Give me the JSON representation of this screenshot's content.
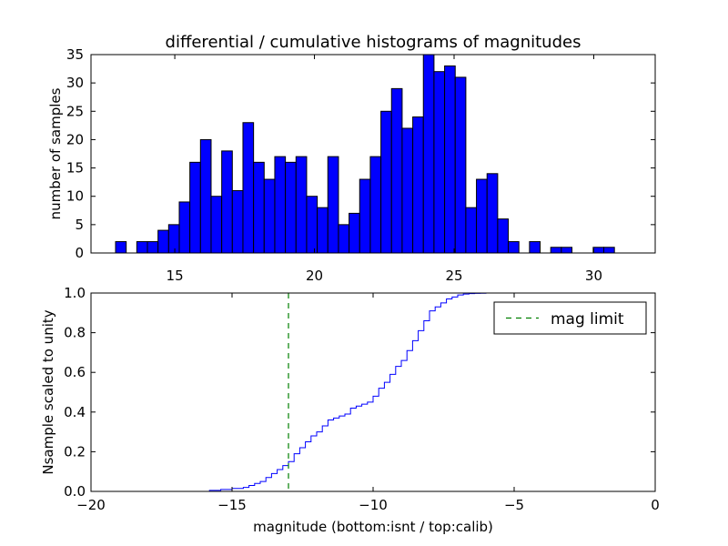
{
  "chart_data": [
    {
      "type": "bar",
      "title": "differential / cumulative histograms of magnitudes",
      "xlabel": "",
      "ylabel": "number of samples",
      "xlim": [
        12.0,
        32.2
      ],
      "ylim": [
        0,
        35
      ],
      "bin_width": 0.38,
      "xticks": [
        15,
        20,
        25,
        30
      ],
      "yticks": [
        0,
        5,
        10,
        15,
        20,
        25,
        30,
        35
      ],
      "bar_color": "#0000ff",
      "bins_start": [
        12.88,
        13.26,
        13.64,
        14.02,
        14.4,
        14.78,
        15.16,
        15.54,
        15.92,
        16.3,
        16.68,
        17.06,
        17.44,
        17.82,
        18.2,
        18.58,
        18.96,
        19.34,
        19.72,
        20.1,
        20.48,
        20.86,
        21.24,
        21.62,
        22.0,
        22.38,
        22.76,
        23.14,
        23.52,
        23.9,
        24.28,
        24.66,
        25.04,
        25.42,
        25.8,
        26.18,
        26.56,
        26.94,
        27.32,
        27.7,
        28.08,
        28.46,
        28.84,
        29.22,
        29.6,
        29.98,
        30.36,
        30.74,
        31.12,
        31.5,
        31.88
      ],
      "values": [
        2,
        0,
        2,
        2,
        4,
        5,
        9,
        16,
        20,
        10,
        18,
        11,
        23,
        16,
        13,
        17,
        16,
        17,
        10,
        8,
        17,
        5,
        7,
        13,
        17,
        25,
        29,
        22,
        24,
        35,
        32,
        33,
        31,
        8,
        13,
        14,
        6,
        2,
        0,
        2,
        0,
        1,
        1,
        0,
        0,
        1,
        1,
        0,
        0,
        0,
        0
      ]
    },
    {
      "type": "line",
      "xlabel": "magnitude (bottom:isnt / top:calib)",
      "ylabel": "Nsample scaled to unity",
      "xlim": [
        -20,
        0
      ],
      "ylim": [
        0.0,
        1.0
      ],
      "xticks": [
        -20,
        -15,
        -10,
        -5,
        0
      ],
      "yticks": [
        0.0,
        0.2,
        0.4,
        0.6,
        0.8,
        1.0
      ],
      "line_color": "#0000ff",
      "mag_limit": -13.0,
      "mag_limit_color": "#008000",
      "legend": {
        "label": "mag limit",
        "placement": "top-right"
      },
      "x": [
        -20.0,
        -15.8,
        -15.4,
        -15.0,
        -14.6,
        -14.4,
        -14.2,
        -14.0,
        -13.8,
        -13.6,
        -13.4,
        -13.2,
        -13.0,
        -12.8,
        -12.6,
        -12.4,
        -12.2,
        -12.0,
        -11.8,
        -11.6,
        -11.4,
        -11.2,
        -11.0,
        -10.8,
        -10.6,
        -10.4,
        -10.2,
        -10.0,
        -9.8,
        -9.6,
        -9.4,
        -9.2,
        -9.0,
        -8.8,
        -8.6,
        -8.4,
        -8.2,
        -8.0,
        -7.8,
        -7.6,
        -7.4,
        -7.2,
        -7.0,
        -6.8,
        -6.6,
        -6.4,
        -6.2,
        -6.0,
        -5.6,
        -0.05
      ],
      "y": [
        0.0,
        0.005,
        0.01,
        0.015,
        0.02,
        0.03,
        0.04,
        0.05,
        0.07,
        0.09,
        0.11,
        0.13,
        0.15,
        0.19,
        0.22,
        0.25,
        0.28,
        0.3,
        0.33,
        0.36,
        0.37,
        0.38,
        0.39,
        0.42,
        0.43,
        0.44,
        0.45,
        0.48,
        0.52,
        0.55,
        0.59,
        0.63,
        0.66,
        0.71,
        0.76,
        0.81,
        0.86,
        0.91,
        0.93,
        0.95,
        0.97,
        0.98,
        0.99,
        0.995,
        0.997,
        0.998,
        0.999,
        1.0,
        1.0,
        1.0
      ]
    }
  ]
}
